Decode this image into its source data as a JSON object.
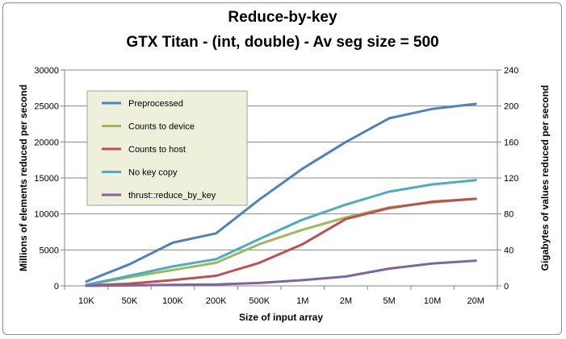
{
  "chart_data": {
    "type": "line",
    "title": "Reduce-by-key",
    "subtitle": "GTX Titan - (int, double) - Av seg size = 500",
    "xlabel": "Size of input array",
    "ylabel": "Millions of elements reduced per second",
    "y2label": "Gigabytes of values reduced per second",
    "categories": [
      "10K",
      "50K",
      "100K",
      "200K",
      "500K",
      "1M",
      "2M",
      "5M",
      "10M",
      "20M"
    ],
    "ylim": [
      0,
      30000
    ],
    "yticks": [
      "0",
      "5000",
      "10000",
      "15000",
      "20000",
      "25000",
      "30000"
    ],
    "y2lim": [
      0,
      240
    ],
    "y2ticks": [
      "0",
      "40",
      "80",
      "120",
      "160",
      "200",
      "240"
    ],
    "grid": true,
    "legend_position": "top-left inside plot",
    "legend_background": "#eef0dc",
    "series": [
      {
        "name": "Preprocessed",
        "color": "#4f81bd",
        "values": [
          600,
          3000,
          6000,
          7300,
          12000,
          16300,
          20000,
          23300,
          24600,
          25300
        ]
      },
      {
        "name": "Counts to device",
        "color": "#9bbb59",
        "values": [
          100,
          1200,
          2200,
          3200,
          5800,
          7800,
          9500,
          10900,
          11600,
          12100
        ]
      },
      {
        "name": "Counts to host",
        "color": "#c0504d",
        "values": [
          50,
          300,
          800,
          1400,
          3200,
          5800,
          9300,
          10800,
          11700,
          12100
        ]
      },
      {
        "name": "No key copy",
        "color": "#4bacc6",
        "values": [
          150,
          1400,
          2700,
          3700,
          6500,
          9200,
          11300,
          13100,
          14100,
          14700
        ]
      },
      {
        "name": "thrust::reduce_by_key",
        "color": "#8064a2",
        "values": [
          10,
          60,
          150,
          200,
          400,
          800,
          1300,
          2400,
          3100,
          3500
        ]
      }
    ]
  }
}
